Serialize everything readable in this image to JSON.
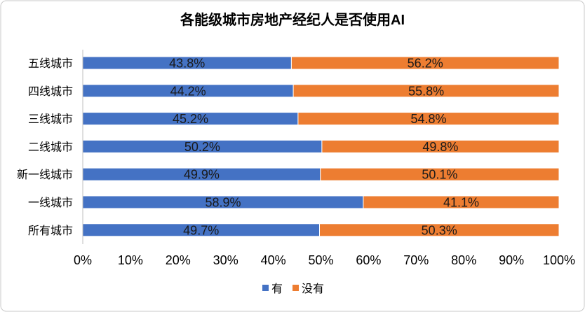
{
  "chart_data": {
    "type": "bar",
    "orientation": "horizontal",
    "stacked": true,
    "title": "各能级城市房地产经纪人是否使用AI",
    "categories": [
      "五线城市",
      "四线城市",
      "三线城市",
      "二线城市",
      "新一线城市",
      "一线城市",
      "所有城市"
    ],
    "series": [
      {
        "name": "有",
        "color": "#4472C4",
        "values": [
          43.8,
          44.2,
          45.2,
          50.2,
          49.9,
          58.9,
          49.7
        ],
        "value_labels": [
          "43.8%",
          "44.2%",
          "45.2%",
          "50.2%",
          "49.9%",
          "58.9%",
          "49.7%"
        ]
      },
      {
        "name": "没有",
        "color": "#ED7D31",
        "values": [
          56.2,
          55.8,
          54.8,
          49.8,
          50.1,
          41.1,
          50.3
        ],
        "value_labels": [
          "56.2%",
          "55.8%",
          "54.8%",
          "49.8%",
          "50.1%",
          "41.1%",
          "50.3%"
        ]
      }
    ],
    "xlim": [
      0,
      100
    ],
    "x_ticks": [
      {
        "value": 0,
        "label": "0%"
      },
      {
        "value": 10,
        "label": "10%"
      },
      {
        "value": 20,
        "label": "20%"
      },
      {
        "value": 30,
        "label": "30%"
      },
      {
        "value": 40,
        "label": "40%"
      },
      {
        "value": 50,
        "label": "50%"
      },
      {
        "value": 60,
        "label": "60%"
      },
      {
        "value": 70,
        "label": "70%"
      },
      {
        "value": 80,
        "label": "80%"
      },
      {
        "value": 90,
        "label": "90%"
      },
      {
        "value": 100,
        "label": "100%"
      }
    ],
    "grid": false,
    "legend": "bottom"
  }
}
